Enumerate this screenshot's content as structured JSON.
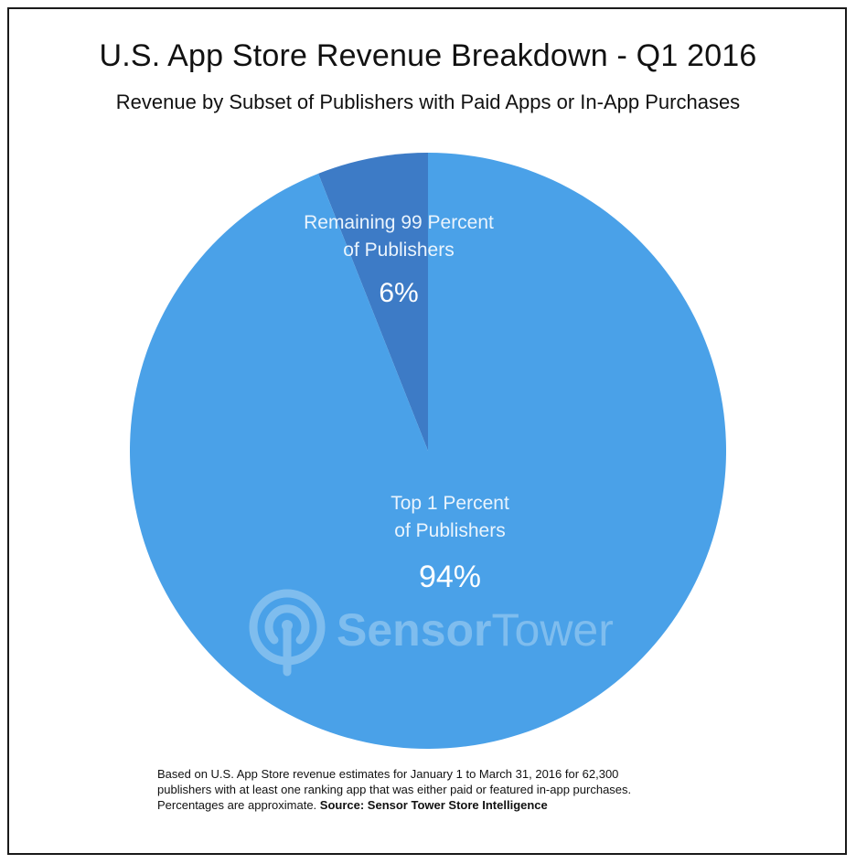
{
  "header": {
    "title": "U.S. App Store Revenue Breakdown - Q1 2016",
    "subtitle": "Revenue by Subset of Publishers with Paid Apps or In-App Purchases"
  },
  "chart_data": {
    "type": "pie",
    "title": "U.S. App Store Revenue Breakdown - Q1 2016",
    "subtitle": "Revenue by Subset of Publishers with Paid Apps or In-App Purchases",
    "slices": [
      {
        "label_lines": [
          "Remaining 99 Percent",
          "of Publishers"
        ],
        "value": 6,
        "value_label": "6%",
        "color": "#3d7bc6"
      },
      {
        "label_lines": [
          "Top 1 Percent",
          "of Publishers"
        ],
        "value": 94,
        "value_label": "94%",
        "color": "#4aa1e8"
      }
    ],
    "legend": "none"
  },
  "watermark": {
    "text_bold": "Sensor",
    "text_light": "Tower",
    "icon": "sensor-tower-logo-icon"
  },
  "footnote": {
    "line1": "Based on U.S. App Store revenue estimates for January 1 to March 31, 2016 for 62,300",
    "line2": "publishers with at least one ranking app that was either paid or featured in-app purchases.",
    "line3_prefix": "Percentages are approximate. ",
    "line3_source": "Source: Sensor Tower Store Intelligence"
  },
  "colors": {
    "border": "#1a1a1a",
    "text": "#111111",
    "watermark": "#7fbdee"
  }
}
